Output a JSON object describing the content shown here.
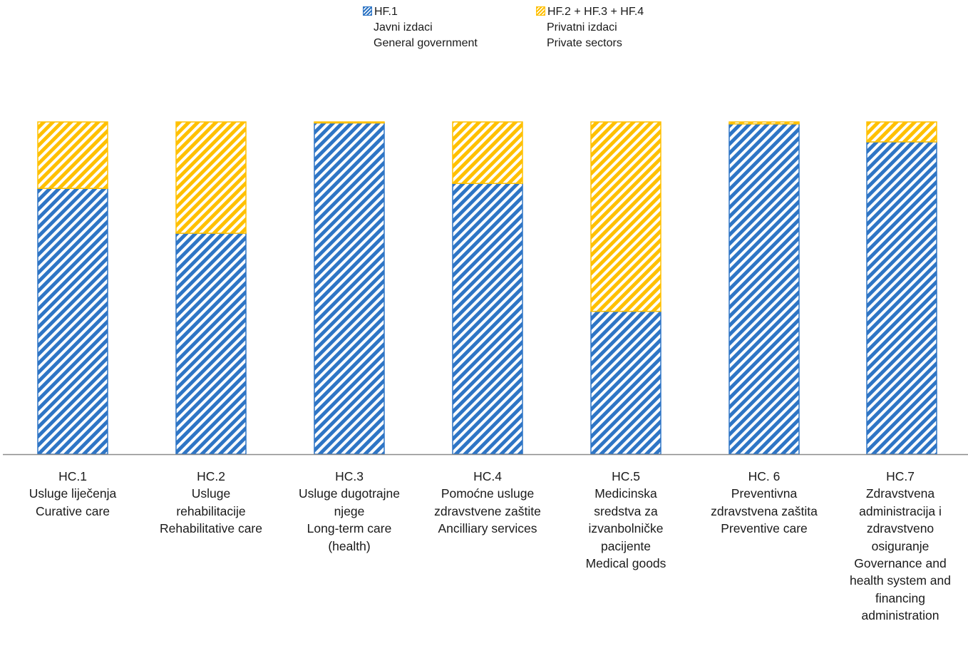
{
  "chart_data": {
    "type": "bar",
    "stacked": true,
    "percent_stacked": true,
    "categories": [
      {
        "lines": [
          "HC.1",
          "Usluge liječenja",
          "Curative care"
        ]
      },
      {
        "lines": [
          "HC.2",
          "Usluge",
          "rehabilitacije",
          "Rehabilitative care"
        ]
      },
      {
        "lines": [
          "HC.3",
          "Usluge dugotrajne",
          "njege",
          "Long-term care",
          "(health)"
        ]
      },
      {
        "lines": [
          "HC.4",
          "Pomoćne usluge",
          "zdravstvene zaštite",
          "Ancilliary services"
        ]
      },
      {
        "lines": [
          "HC.5",
          "Medicinska",
          "sredstva za",
          "izvanbolničke",
          "pacijente",
          "Medical goods"
        ]
      },
      {
        "lines": [
          "HC. 6",
          "Preventivna",
          "zdravstvena zaštita",
          "Preventive care"
        ]
      },
      {
        "lines": [
          "HC.7",
          "Zdravstvena",
          "administracija i",
          "zdravstveno",
          "osiguranje",
          "Governance and",
          "health system and",
          "financing",
          "administration"
        ]
      }
    ],
    "series": [
      {
        "name": "HF.1",
        "name_lines": [
          "HF.1",
          "Javni izdaci",
          "General government"
        ],
        "color": "#2E75C5",
        "pattern": "diagonal-stripes",
        "values": [
          0.8,
          0.665,
          0.997,
          0.815,
          0.43,
          0.994,
          0.94
        ]
      },
      {
        "name": "HF.2 + HF.3 + HF.4",
        "name_lines": [
          "HF.2 + HF.3 + HF.4",
          "Privatni izdaci",
          "Private sectors"
        ],
        "color": "#FFC000",
        "pattern": "diagonal-stripes",
        "values": [
          0.2,
          0.335,
          0.003,
          0.185,
          0.57,
          0.006,
          0.06
        ]
      }
    ],
    "ylim": [
      0,
      1
    ],
    "grid": false,
    "legend_position": "top-center",
    "xlabel": "",
    "ylabel": ""
  }
}
